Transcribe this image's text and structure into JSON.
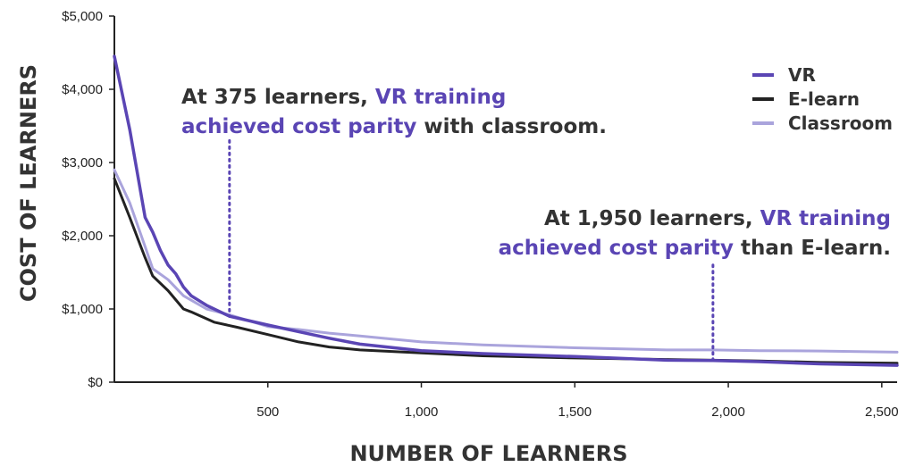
{
  "chart_data": {
    "type": "line",
    "xlabel": "NUMBER OF LEARNERS",
    "ylabel": "COST OF LEARNERS",
    "xlim": [
      0,
      2550
    ],
    "ylim": [
      0,
      5000
    ],
    "x_ticks": [
      500,
      1000,
      1500,
      2000,
      2500
    ],
    "x_tick_labels": [
      "500",
      "1,000",
      "1,500",
      "2,000",
      "2,500"
    ],
    "y_ticks": [
      0,
      1000,
      2000,
      3000,
      4000,
      5000
    ],
    "y_tick_labels": [
      "$0",
      "$1,000",
      "$2,000",
      "$3,000",
      "$4,000",
      "$5,000"
    ],
    "grid": false,
    "legend_position": "top-right",
    "series": [
      {
        "name": "VR",
        "color": "#5a45b4",
        "points": [
          [
            0,
            4450
          ],
          [
            50,
            3450
          ],
          [
            100,
            2250
          ],
          [
            125,
            2050
          ],
          [
            150,
            1800
          ],
          [
            175,
            1600
          ],
          [
            200,
            1480
          ],
          [
            225,
            1300
          ],
          [
            250,
            1180
          ],
          [
            300,
            1050
          ],
          [
            375,
            900
          ],
          [
            500,
            780
          ],
          [
            600,
            690
          ],
          [
            700,
            600
          ],
          [
            800,
            520
          ],
          [
            1000,
            430
          ],
          [
            1200,
            390
          ],
          [
            1500,
            350
          ],
          [
            1800,
            300
          ],
          [
            1950,
            295
          ],
          [
            2100,
            280
          ],
          [
            2300,
            250
          ],
          [
            2550,
            230
          ]
        ]
      },
      {
        "name": "E-learn",
        "color": "#222222",
        "points": [
          [
            0,
            2780
          ],
          [
            50,
            2250
          ],
          [
            100,
            1700
          ],
          [
            125,
            1450
          ],
          [
            175,
            1250
          ],
          [
            225,
            1000
          ],
          [
            250,
            960
          ],
          [
            325,
            820
          ],
          [
            400,
            750
          ],
          [
            500,
            650
          ],
          [
            600,
            550
          ],
          [
            700,
            480
          ],
          [
            800,
            440
          ],
          [
            1000,
            400
          ],
          [
            1200,
            360
          ],
          [
            1500,
            330
          ],
          [
            1800,
            310
          ],
          [
            1950,
            300
          ],
          [
            2100,
            290
          ],
          [
            2300,
            270
          ],
          [
            2550,
            260
          ]
        ]
      },
      {
        "name": "Classroom",
        "color": "#aaa4dc",
        "points": [
          [
            0,
            2900
          ],
          [
            50,
            2450
          ],
          [
            100,
            1850
          ],
          [
            125,
            1550
          ],
          [
            175,
            1400
          ],
          [
            225,
            1180
          ],
          [
            300,
            1000
          ],
          [
            375,
            920
          ],
          [
            500,
            760
          ],
          [
            600,
            720
          ],
          [
            700,
            670
          ],
          [
            800,
            630
          ],
          [
            1000,
            550
          ],
          [
            1200,
            510
          ],
          [
            1500,
            470
          ],
          [
            1800,
            440
          ],
          [
            1950,
            440
          ],
          [
            2100,
            430
          ],
          [
            2300,
            425
          ],
          [
            2550,
            410
          ]
        ]
      }
    ],
    "annotations": [
      {
        "x": 375,
        "line_from": 3300,
        "line_to": 900,
        "text_parts": [
          [
            "At 375 learners, ",
            "VR training"
          ],
          [
            "achieved cost parity",
            " with classroom."
          ]
        ]
      },
      {
        "x": 1950,
        "line_from": 1600,
        "line_to": 300,
        "text_parts": [
          [
            "At 1,950 learners, ",
            "VR training"
          ],
          [
            "achieved cost parity",
            " than E-learn."
          ]
        ]
      }
    ]
  }
}
